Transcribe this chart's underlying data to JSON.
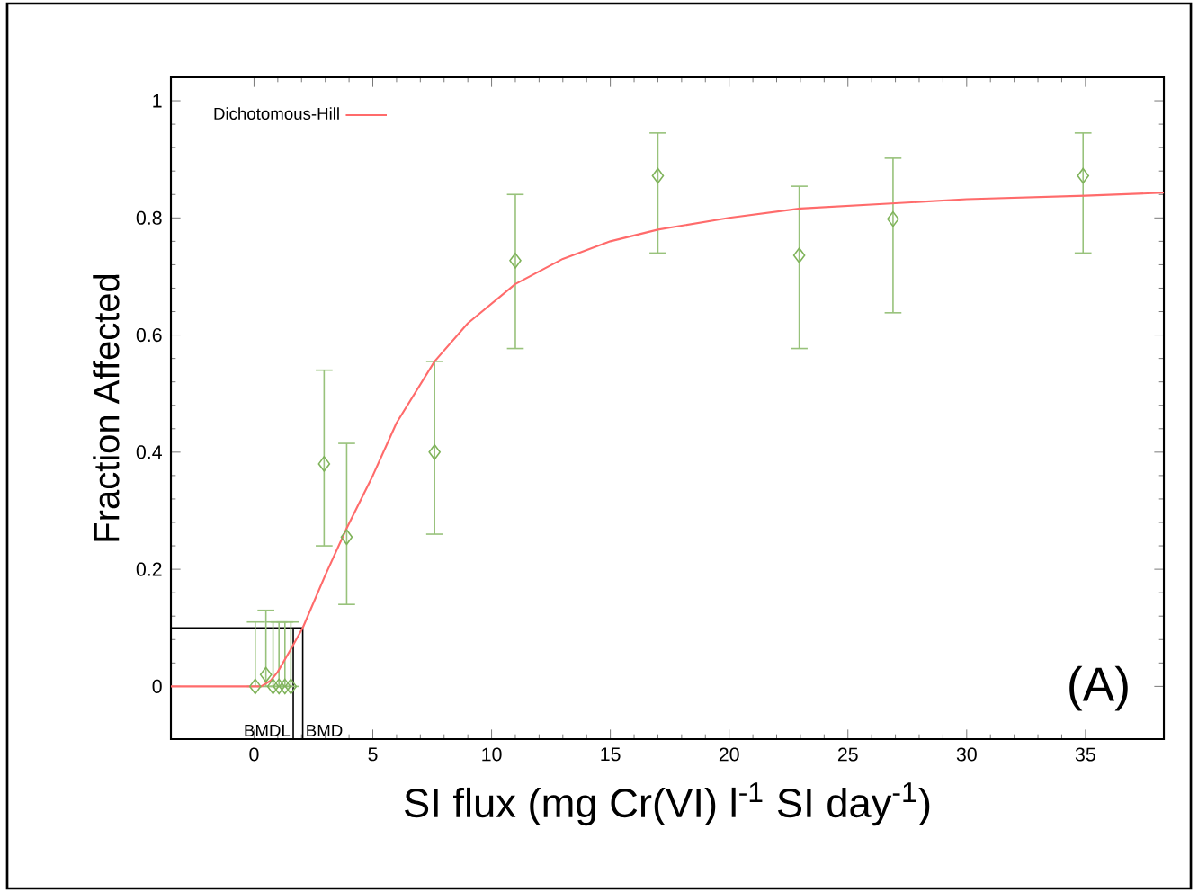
{
  "chart_data": {
    "type": "scatter",
    "xlabel": "SI flux (mg Cr(VI) l$^{-1}$ SI day$^{-1}$)",
    "ylabel": "Fraction Affected",
    "xlim": [
      -3.5,
      38.3
    ],
    "ylim": [
      -0.09,
      1.04
    ],
    "xticks": [
      0,
      5,
      10,
      15,
      20,
      25,
      30,
      35
    ],
    "yticks": [
      0,
      0.2,
      0.4,
      0.6,
      0.8,
      1
    ],
    "grid": false,
    "legend": "top left",
    "series": [
      {
        "color": "#7fb35a",
        "marker": "diamond",
        "x": [
          0.05,
          0.5,
          0.8,
          1.05,
          1.3,
          1.55,
          2.95,
          3.9,
          7.6,
          11.0,
          17.0,
          22.95,
          26.9,
          34.9
        ],
        "values": [
          0,
          0.02,
          0,
          0,
          0,
          0,
          0.38,
          0.255,
          0.4,
          0.727,
          0.872,
          0.736,
          0.798,
          0.872
        ],
        "errors": [
          [
            0,
            0.11
          ],
          [
            0,
            0.13
          ],
          [
            0,
            0.11
          ],
          [
            0,
            0.11
          ],
          [
            0,
            0.11
          ],
          [
            0,
            0.11
          ],
          [
            0.24,
            0.54
          ],
          [
            0.14,
            0.415
          ],
          [
            0.26,
            0.555
          ],
          [
            0.577,
            0.84
          ],
          [
            0.74,
            0.945
          ],
          [
            0.577,
            0.854
          ],
          [
            0.638,
            0.902
          ],
          [
            0.74,
            0.945
          ]
        ]
      },
      {
        "type": "line",
        "name": "Dichotomous-Hill",
        "color": "#ff6b6b",
        "line_style": "solid",
        "x": [
          -3.5,
          0,
          0.3,
          0.7,
          1,
          1.5,
          2.05,
          3,
          3.9,
          5,
          6,
          7.6,
          9,
          11,
          13,
          15,
          17,
          20,
          23,
          27,
          30,
          35,
          38.3
        ],
        "values": [
          0,
          0,
          0,
          0.01,
          0.025,
          0.06,
          0.1,
          0.19,
          0.27,
          0.36,
          0.45,
          0.555,
          0.62,
          0.687,
          0.73,
          0.76,
          0.78,
          0.8,
          0.816,
          0.825,
          0.832,
          0.838,
          0.843
        ]
      }
    ],
    "ref_lines": [
      {
        "axis": "y",
        "value": 0.1,
        "color": "#000000"
      },
      {
        "axis": "x",
        "value": 1.65,
        "label": "BMDL",
        "color": "#000000"
      },
      {
        "axis": "x",
        "value": 2.05,
        "label": "BMD",
        "color": "#000000"
      }
    ],
    "annotations": [
      "(A)"
    ]
  }
}
